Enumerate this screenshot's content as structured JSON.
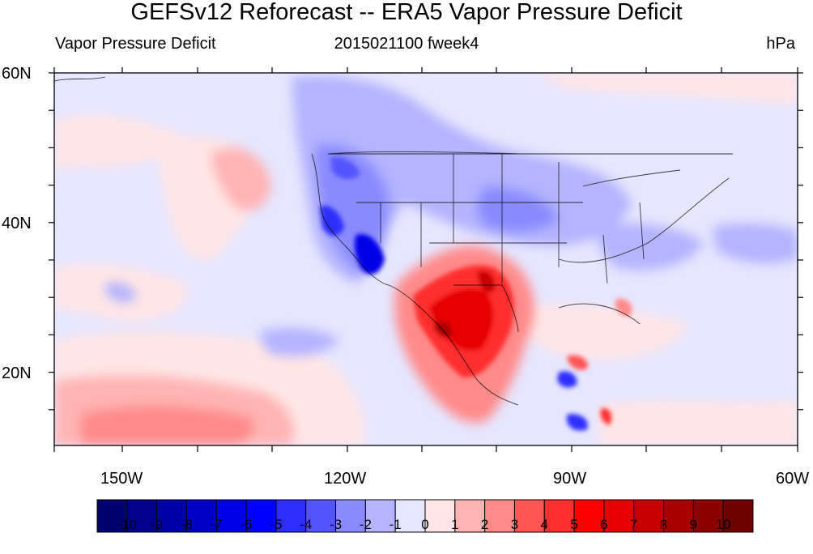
{
  "title": "GEFSv12 Reforecast -- ERA5 Vapor Pressure Deficit",
  "subtitle_left": "Vapor Pressure Deficit",
  "subtitle_center": "2015021100 fweek4",
  "subtitle_right": "hPa",
  "lat_labels": [
    "60N",
    "40N",
    "20N"
  ],
  "lon_labels": [
    "150W",
    "120W",
    "90W",
    "60W"
  ],
  "colorbar": {
    "labels": [
      "-10",
      "-9",
      "-8",
      "-7",
      "-6",
      "-5",
      "-4",
      "-3",
      "-2",
      "-1",
      "0",
      "1",
      "2",
      "3",
      "4",
      "5",
      "6",
      "7",
      "8",
      "9",
      "10"
    ],
    "colors": [
      "#00006e",
      "#00008c",
      "#0000a8",
      "#0000c8",
      "#0000e6",
      "#0000ff",
      "#2d2dff",
      "#5555ff",
      "#8a8aff",
      "#b4b4ff",
      "#e6e6ff",
      "#ffe6e6",
      "#ffb4b4",
      "#ff8a8a",
      "#ff5555",
      "#ff2d2d",
      "#ff0000",
      "#e60000",
      "#c80000",
      "#a80000",
      "#8c0000",
      "#6e0000"
    ]
  }
}
